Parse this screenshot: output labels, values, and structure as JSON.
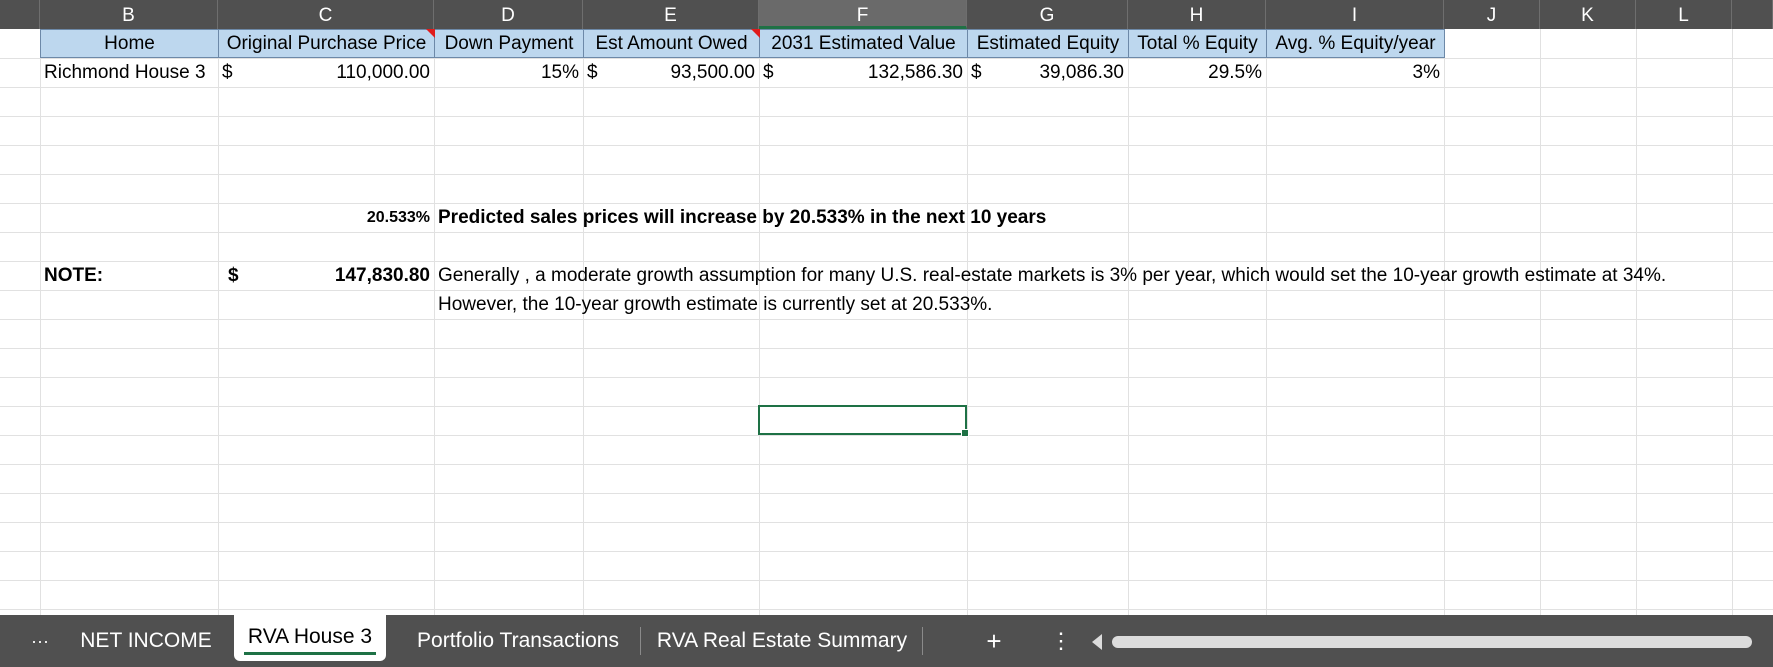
{
  "columns": [
    "B",
    "C",
    "D",
    "E",
    "F",
    "G",
    "H",
    "I",
    "J",
    "K",
    "L"
  ],
  "header_row": {
    "home": "Home",
    "original_purchase_price": "Original Purchase Price",
    "down_payment": "Down Payment",
    "est_amount_owed": "Est Amount Owed",
    "estimated_value_2031": "2031 Estimated Value",
    "estimated_equity": "Estimated Equity",
    "total_pct_equity": "Total % Equity",
    "avg_pct_equity_year": "Avg. % Equity/year"
  },
  "data_row": {
    "home": "Richmond House 3",
    "currency": "$",
    "original_purchase_price": "110,000.00",
    "down_payment": "15%",
    "est_amount_owed": "93,500.00",
    "estimated_value_2031": "132,586.30",
    "estimated_equity": "39,086.30",
    "total_pct_equity": "29.5%",
    "avg_pct_equity_year": "3%"
  },
  "prediction": {
    "rate": "20.533%",
    "text": "Predicted sales prices will increase by 20.533% in the next 10 years"
  },
  "note": {
    "label": "NOTE:",
    "currency": "$",
    "value": "147,830.80",
    "line1": "Generally , a moderate growth assumption for many U.S. real-estate markets is 3% per year, which would set the 10-year growth estimate at 34%.",
    "line2": "However, the 10-year growth estimate is currently set at 20.533%."
  },
  "tabs": {
    "more": "···",
    "items": [
      "NET INCOME",
      "RVA House 3",
      "Portfolio Transactions",
      "RVA Real Estate Summary"
    ],
    "active": "RVA House 3",
    "add": "+",
    "menu": "⋮"
  }
}
